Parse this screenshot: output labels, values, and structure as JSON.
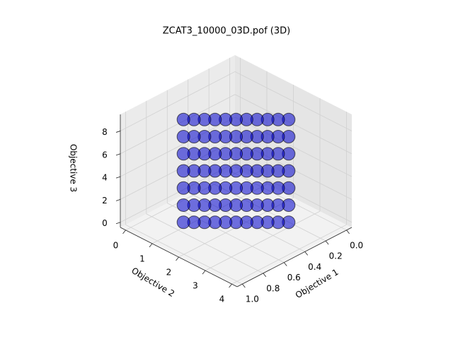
{
  "chart_data": {
    "type": "scatter3d",
    "title": "ZCAT3_10000_03D.pof (3D)",
    "xlabel": "Objective 1",
    "ylabel": "Objective 2",
    "zlabel": "Objective 3",
    "xlim": [
      -0.05,
      1.05
    ],
    "ylim": [
      -0.2,
      4.2
    ],
    "zlim": [
      -0.45,
      9.45
    ],
    "xticks": [
      {
        "value": 0,
        "label": "0.0"
      },
      {
        "value": 0.2,
        "label": "0.2"
      },
      {
        "value": 0.4,
        "label": "0.4"
      },
      {
        "value": 0.6,
        "label": "0.6"
      },
      {
        "value": 0.8,
        "label": "0.8"
      },
      {
        "value": 1,
        "label": "1.0"
      }
    ],
    "yticks": [
      0,
      1,
      2,
      3,
      4
    ],
    "zticks": [
      0,
      2,
      4,
      6,
      8
    ],
    "grid": true,
    "series": [
      {
        "color": "#0000cc",
        "x": [
          0.25,
          0.3,
          0.35,
          0.4,
          0.45,
          0.5,
          0.55,
          0.6,
          0.65,
          0.7,
          0.75,
          0.25,
          0.3,
          0.35,
          0.4,
          0.45,
          0.5,
          0.55,
          0.6,
          0.65,
          0.7,
          0.75,
          0.25,
          0.3,
          0.35,
          0.4,
          0.45,
          0.5,
          0.55,
          0.6,
          0.65,
          0.7,
          0.75,
          0.25,
          0.3,
          0.35,
          0.4,
          0.45,
          0.5,
          0.55,
          0.6,
          0.65,
          0.7,
          0.75,
          0.25,
          0.3,
          0.35,
          0.4,
          0.45,
          0.5,
          0.55,
          0.6,
          0.65,
          0.7,
          0.75,
          0.25,
          0.3,
          0.35,
          0.4,
          0.45,
          0.5,
          0.55,
          0.6,
          0.65,
          0.7,
          0.75,
          0.25,
          0.3,
          0.35,
          0.4,
          0.45,
          0.5,
          0.55,
          0.6,
          0.65,
          0.7,
          0.75
        ],
        "y": [
          3,
          2.8,
          2.6,
          2.4,
          2.2,
          2,
          1.8,
          1.6,
          1.4,
          1.2,
          1,
          3,
          2.8,
          2.6,
          2.4,
          2.2,
          2,
          1.8,
          1.6,
          1.4,
          1.2,
          1,
          3,
          2.8,
          2.6,
          2.4,
          2.2,
          2,
          1.8,
          1.6,
          1.4,
          1.2,
          1,
          3,
          2.8,
          2.6,
          2.4,
          2.2,
          2,
          1.8,
          1.6,
          1.4,
          1.2,
          1,
          3,
          2.8,
          2.6,
          2.4,
          2.2,
          2,
          1.8,
          1.6,
          1.4,
          1.2,
          1,
          3,
          2.8,
          2.6,
          2.4,
          2.2,
          2,
          1.8,
          1.6,
          1.4,
          1.2,
          1,
          3,
          2.8,
          2.6,
          2.4,
          2.2,
          2,
          1.8,
          1.6,
          1.4,
          1.2,
          1
        ],
        "z": [
          0,
          0,
          0,
          0,
          0,
          0,
          0,
          0,
          0,
          0,
          0,
          1.5,
          1.5,
          1.5,
          1.5,
          1.5,
          1.5,
          1.5,
          1.5,
          1.5,
          1.5,
          1.5,
          3,
          3,
          3,
          3,
          3,
          3,
          3,
          3,
          3,
          3,
          3,
          4.5,
          4.5,
          4.5,
          4.5,
          4.5,
          4.5,
          4.5,
          4.5,
          4.5,
          4.5,
          4.5,
          6,
          6,
          6,
          6,
          6,
          6,
          6,
          6,
          6,
          6,
          6,
          7.5,
          7.5,
          7.5,
          7.5,
          7.5,
          7.5,
          7.5,
          7.5,
          7.5,
          7.5,
          7.5,
          9,
          9,
          9,
          9,
          9,
          9,
          9,
          9,
          9,
          9,
          9
        ]
      }
    ]
  }
}
